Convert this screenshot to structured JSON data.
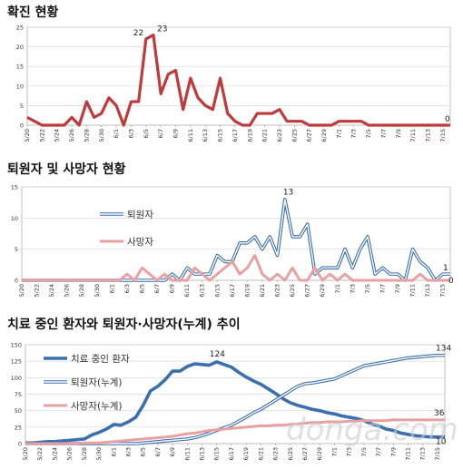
{
  "chart_data": [
    {
      "type": "line",
      "title": "확진 현황",
      "x": [
        "5/20",
        "5/21",
        "5/22",
        "5/23",
        "5/24",
        "5/25",
        "5/26",
        "5/27",
        "5/28",
        "5/29",
        "5/30",
        "5/31",
        "6/1",
        "6/2",
        "6/3",
        "6/4",
        "6/5",
        "6/6",
        "6/7",
        "6/8",
        "6/9",
        "6/10",
        "6/11",
        "6/12",
        "6/13",
        "6/14",
        "6/15",
        "6/16",
        "6/17",
        "6/18",
        "6/19",
        "6/20",
        "6/21",
        "6/22",
        "6/23",
        "6/24",
        "6/25",
        "6/26",
        "6/27",
        "6/28",
        "6/29",
        "6/30",
        "7/1",
        "7/2",
        "7/3",
        "7/4",
        "7/5",
        "7/6",
        "7/7",
        "7/8",
        "7/9",
        "7/10",
        "7/11",
        "7/12",
        "7/13",
        "7/14",
        "7/15",
        "7/16"
      ],
      "x_tick_labels": [
        "5/20",
        "5/22",
        "5/24",
        "5/26",
        "5/28",
        "5/30",
        "6/1",
        "6/3",
        "6/5",
        "6/7",
        "6/9",
        "6/11",
        "6/13",
        "6/15",
        "6/17",
        "6/19",
        "6/21",
        "6/23",
        "6/25",
        "6/27",
        "6/29",
        "7/1",
        "7/3",
        "7/5",
        "7/7",
        "7/9",
        "7/11",
        "7/13",
        "7/15"
      ],
      "ylim": [
        0,
        25
      ],
      "y_ticks": [
        0,
        5,
        10,
        15,
        20,
        25
      ],
      "grid": true,
      "series": [
        {
          "name": "",
          "color": "#c0393b",
          "values": [
            2,
            1,
            0,
            0,
            0,
            0,
            2,
            0,
            6,
            2,
            3,
            7,
            5,
            0,
            6,
            6,
            22,
            23,
            8,
            13,
            14,
            4,
            12,
            7,
            5,
            4,
            12,
            3,
            1,
            0,
            0,
            3,
            3,
            3,
            4,
            1,
            1,
            1,
            0,
            0,
            0,
            0,
            1,
            1,
            1,
            1,
            0,
            0,
            0,
            0,
            0,
            0,
            0,
            0,
            0,
            0,
            0,
            0
          ]
        }
      ],
      "annotations": [
        {
          "text": "22",
          "x": "6/5",
          "y": 22
        },
        {
          "text": "23",
          "x": "6/6",
          "y": 23
        },
        {
          "text": "0",
          "x": "7/16",
          "y": 0
        }
      ]
    },
    {
      "type": "line",
      "title": "퇴원자 및 사망자 현황",
      "x": [
        "5/20",
        "5/21",
        "5/22",
        "5/23",
        "5/24",
        "5/25",
        "5/26",
        "5/27",
        "5/28",
        "5/29",
        "5/30",
        "5/31",
        "6/1",
        "6/2",
        "6/3",
        "6/4",
        "6/5",
        "6/6",
        "6/7",
        "6/8",
        "6/9",
        "6/10",
        "6/11",
        "6/12",
        "6/13",
        "6/14",
        "6/15",
        "6/16",
        "6/17",
        "6/18",
        "6/19",
        "6/20",
        "6/21",
        "6/22",
        "6/23",
        "6/24",
        "6/25",
        "6/26",
        "6/27",
        "6/28",
        "6/29",
        "6/30",
        "7/1",
        "7/2",
        "7/3",
        "7/4",
        "7/5",
        "7/6",
        "7/7",
        "7/8",
        "7/9",
        "7/10",
        "7/11",
        "7/12",
        "7/13",
        "7/14",
        "7/15",
        "7/16"
      ],
      "x_tick_labels": [
        "5/20",
        "5/22",
        "5/24",
        "5/26",
        "5/28",
        "5/30",
        "6/1",
        "6/3",
        "6/5",
        "6/7",
        "6/9",
        "6/11",
        "6/13",
        "6/15",
        "6/17",
        "6/19",
        "6/21",
        "6/23",
        "6/25",
        "6/27",
        "6/29",
        "7/1",
        "7/3",
        "7/5",
        "7/7",
        "7/9",
        "7/11",
        "7/13",
        "7/15"
      ],
      "ylim": [
        0,
        15
      ],
      "y_ticks": [
        0,
        5,
        10,
        15
      ],
      "grid": true,
      "legend": "left",
      "series": [
        {
          "name": "퇴원자",
          "color": "#3a6fb0",
          "values": [
            0,
            0,
            0,
            0,
            0,
            0,
            0,
            0,
            0,
            0,
            0,
            0,
            0,
            0,
            0,
            0,
            0,
            0,
            0,
            0,
            1,
            0,
            2,
            1,
            1,
            1,
            4,
            3,
            3,
            6,
            6,
            7,
            5,
            7,
            4,
            13,
            7,
            7,
            9,
            1,
            2,
            2,
            2,
            5,
            2,
            5,
            7,
            1,
            2,
            1,
            1,
            0,
            5,
            3,
            2,
            0,
            1,
            1
          ]
        },
        {
          "name": "사망자",
          "color": "#e8a0a0",
          "values": [
            0,
            0,
            0,
            0,
            0,
            0,
            0,
            0,
            0,
            0,
            0,
            0,
            0,
            0,
            1,
            0,
            2,
            1,
            0,
            1,
            0,
            0,
            0,
            2,
            1,
            0,
            1,
            2,
            3,
            1,
            2,
            4,
            1,
            0,
            1,
            0,
            2,
            0,
            0,
            2,
            0,
            1,
            0,
            1,
            0,
            0,
            0,
            0,
            0,
            0,
            0,
            0,
            0,
            1,
            0,
            0,
            0,
            0
          ]
        }
      ],
      "annotations": [
        {
          "text": "13",
          "x": "6/24",
          "y": 13
        },
        {
          "text": "1",
          "x": "7/16",
          "y": 1
        },
        {
          "text": "0",
          "x": "7/16",
          "y": 0
        }
      ]
    },
    {
      "type": "line",
      "title": "치료 중인 환자와 퇴원자·사망자(누계) 추이",
      "x": [
        "5/20",
        "5/21",
        "5/22",
        "5/23",
        "5/24",
        "5/25",
        "5/26",
        "5/27",
        "5/28",
        "5/29",
        "5/30",
        "5/31",
        "6/1",
        "6/2",
        "6/3",
        "6/4",
        "6/5",
        "6/6",
        "6/7",
        "6/8",
        "6/9",
        "6/10",
        "6/11",
        "6/12",
        "6/13",
        "6/14",
        "6/15",
        "6/16",
        "6/17",
        "6/18",
        "6/19",
        "6/20",
        "6/21",
        "6/22",
        "6/23",
        "6/24",
        "6/25",
        "6/26",
        "6/27",
        "6/28",
        "6/29",
        "6/30",
        "7/1",
        "7/2",
        "7/3",
        "7/4",
        "7/5",
        "7/6",
        "7/7",
        "7/8",
        "7/9",
        "7/10",
        "7/11",
        "7/12",
        "7/13",
        "7/14",
        "7/15",
        "7/16"
      ],
      "x_tick_labels": [
        "5/20",
        "5/22",
        "5/24",
        "5/26",
        "5/28",
        "5/30",
        "6/1",
        "6/3",
        "6/5",
        "6/7",
        "6/9",
        "6/11",
        "6/13",
        "6/15",
        "6/17",
        "6/19",
        "6/21",
        "6/23",
        "6/25",
        "6/27",
        "6/29",
        "7/1",
        "7/3",
        "7/5",
        "7/7",
        "7/9",
        "7/11",
        "7/13",
        "7/15"
      ],
      "ylim": [
        0,
        150
      ],
      "y_ticks": [
        0,
        25,
        50,
        75,
        100,
        125,
        150
      ],
      "grid": true,
      "legend": "top-left",
      "series": [
        {
          "name": "치료 중인 환자",
          "color": "#3a6fb0",
          "values": [
            1,
            1,
            2,
            3,
            3,
            4,
            5,
            6,
            7,
            13,
            17,
            22,
            29,
            28,
            33,
            40,
            58,
            80,
            87,
            97,
            110,
            110,
            117,
            121,
            120,
            119,
            124,
            120,
            116,
            108,
            101,
            95,
            90,
            83,
            76,
            68,
            62,
            58,
            55,
            52,
            50,
            47,
            45,
            42,
            40,
            38,
            35,
            30,
            27,
            22,
            20,
            16,
            14,
            12,
            11,
            10,
            10,
            10
          ]
        },
        {
          "name": "퇴원자(누계)",
          "color": "#3a6fb0",
          "values": [
            0,
            0,
            0,
            0,
            0,
            0,
            0,
            0,
            0,
            0,
            0,
            0,
            0,
            0,
            0,
            0,
            1,
            2,
            3,
            4,
            5,
            6,
            7,
            9,
            12,
            16,
            20,
            24,
            28,
            34,
            40,
            47,
            52,
            59,
            66,
            73,
            80,
            87,
            91,
            92,
            94,
            96,
            98,
            103,
            108,
            113,
            118,
            120,
            122,
            124,
            126,
            128,
            130,
            131,
            132,
            133,
            134,
            134
          ]
        },
        {
          "name": "사망자(누계)",
          "color": "#e8a0a0",
          "values": [
            0,
            0,
            0,
            0,
            0,
            0,
            0,
            0,
            1,
            1,
            1,
            2,
            3,
            4,
            5,
            6,
            7,
            8,
            9,
            10,
            11,
            13,
            15,
            16,
            18,
            20,
            21,
            22,
            23,
            24,
            25,
            26,
            27,
            27,
            28,
            28,
            29,
            30,
            31,
            32,
            32,
            33,
            33,
            33,
            34,
            34,
            35,
            35,
            35,
            35,
            36,
            36,
            36,
            36,
            36,
            36,
            36,
            36
          ]
        }
      ],
      "annotations": [
        {
          "text": "124",
          "x": "6/15",
          "y": 124
        },
        {
          "text": "134",
          "x": "7/16",
          "y": 134
        },
        {
          "text": "36",
          "x": "7/16",
          "y": 36
        },
        {
          "text": "10",
          "x": "7/16",
          "y": 10
        }
      ]
    }
  ],
  "watermark": "donga.com"
}
